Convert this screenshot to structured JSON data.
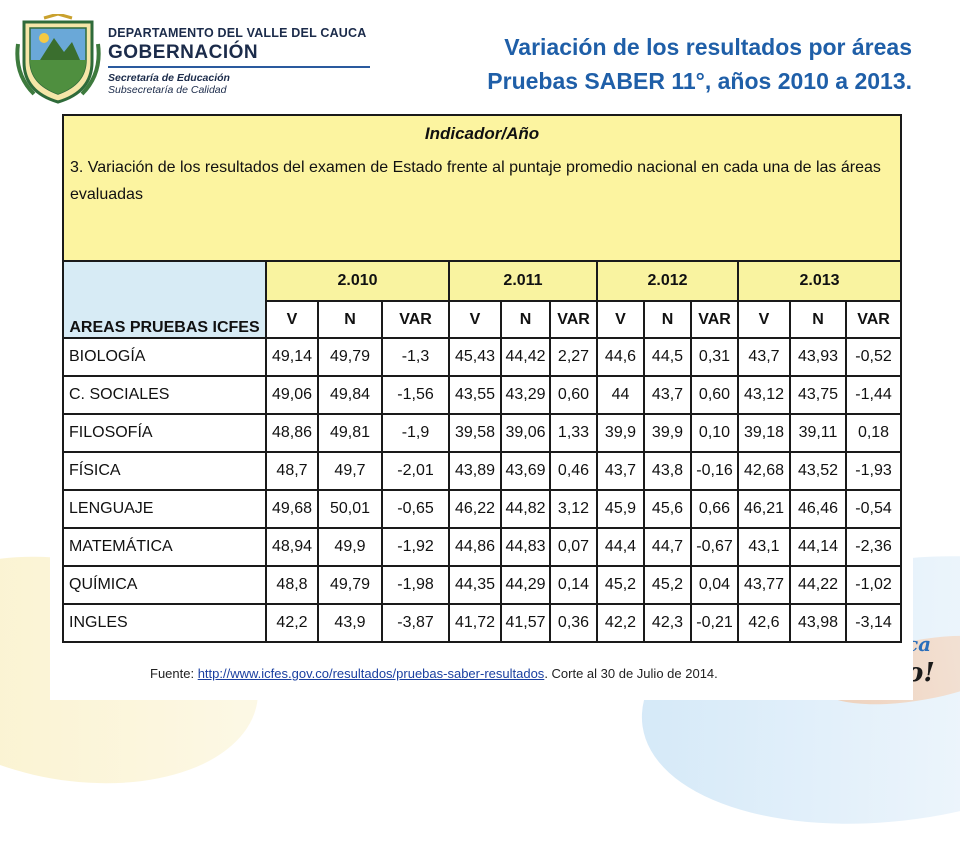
{
  "header": {
    "department": "DEPARTAMENTO DEL VALLE DEL CAUCA",
    "gobernacion": "GOBERNACIÓN",
    "secretaria": "Secretaría de Educación",
    "subsecretaria": "Subsecretaría de Calidad",
    "title_line1": "Variación de los resultados por áreas",
    "title_line2": "Pruebas SABER 11°, años 2010 a 2013."
  },
  "table": {
    "indicator_title": "Indicador/Año",
    "indicator_text": "3. Variación de los resultados del examen de Estado frente al puntaje promedio  nacional en cada una de las áreas evaluadas",
    "areas_header": "AREAS PRUEBAS ICFES",
    "years": [
      "2.010",
      "2.011",
      "2.012",
      "2.013"
    ],
    "subheaders": [
      "V",
      "N",
      "VAR"
    ],
    "rows": [
      {
        "area": "BIOLOGÍA",
        "values": [
          "49,14",
          "49,79",
          "-1,3",
          "45,43",
          "44,42",
          "2,27",
          "44,6",
          "44,5",
          "0,31",
          "43,7",
          "43,93",
          "-0,52"
        ]
      },
      {
        "area": "C. SOCIALES",
        "values": [
          "49,06",
          "49,84",
          "-1,56",
          "43,55",
          "43,29",
          "0,60",
          "44",
          "43,7",
          "0,60",
          "43,12",
          "43,75",
          "-1,44"
        ]
      },
      {
        "area": "FILOSOFÍA",
        "values": [
          "48,86",
          "49,81",
          "-1,9",
          "39,58",
          "39,06",
          "1,33",
          "39,9",
          "39,9",
          "0,10",
          "39,18",
          "39,11",
          "0,18"
        ]
      },
      {
        "area": "FÍSICA",
        "values": [
          "48,7",
          "49,7",
          "-2,01",
          "43,89",
          "43,69",
          "0,46",
          "43,7",
          "43,8",
          "-0,16",
          "42,68",
          "43,52",
          "-1,93"
        ]
      },
      {
        "area": "LENGUAJE",
        "values": [
          "49,68",
          "50,01",
          "-0,65",
          "46,22",
          "44,82",
          "3,12",
          "45,9",
          "45,6",
          "0,66",
          "46,21",
          "46,46",
          "-0,54"
        ]
      },
      {
        "area": "MATEMÁTICA",
        "values": [
          "48,94",
          "49,9",
          "-1,92",
          "44,86",
          "44,83",
          "0,07",
          "44,4",
          "44,7",
          "-0,67",
          "43,1",
          "44,14",
          "-2,36"
        ]
      },
      {
        "area": "QUÍMICA",
        "values": [
          "48,8",
          "49,79",
          "-1,98",
          "44,35",
          "44,29",
          "0,14",
          "45,2",
          "45,2",
          "0,04",
          "43,77",
          "44,22",
          "-1,02"
        ]
      },
      {
        "area": "INGLES",
        "values": [
          "42,2",
          "43,9",
          "-3,87",
          "41,72",
          "41,57",
          "0,36",
          "42,2",
          "42,3",
          "-0,21",
          "42,6",
          "43,98",
          "-3,14"
        ]
      }
    ]
  },
  "source": {
    "prefix": "Fuente: ",
    "link": "http://www.icfes.gov.co/resultados/pruebas-saber-resultados",
    "suffix": ". Corte al 30 de Julio de 2014."
  },
  "background": {
    "slogan_fragment_1": "ca",
    "slogan_fragment_2": "o!"
  },
  "colors": {
    "title_blue": "#1f5fa8",
    "indicator_yellow": "#fcf4a0",
    "areas_blue": "#d7ebf5"
  }
}
